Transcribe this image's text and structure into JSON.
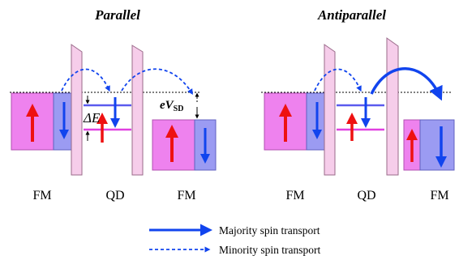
{
  "panels": {
    "left": {
      "title": "Parallel",
      "labels": {
        "fm_left": "FM",
        "qd": "QD",
        "fm_right": "FM"
      },
      "annotations": {
        "delta_e": "ΔE",
        "ev_main": "eV",
        "ev_sub": "SD"
      }
    },
    "right": {
      "title": "Antiparallel",
      "labels": {
        "fm_left": "FM",
        "qd": "QD",
        "fm_right": "FM"
      }
    }
  },
  "legend": {
    "majority": "Majority spin transport",
    "minority": "Minority spin transport"
  },
  "colors": {
    "majority_band": "#ee82ee",
    "minority_band": "#9b9bf2",
    "barrier": "#f6cdea",
    "up_arrow": "#ee1111",
    "down_arrow": "#1144ee",
    "transport": "#1144ee",
    "level_line": "#e040e0",
    "level_line_blue": "#5a5aee"
  }
}
